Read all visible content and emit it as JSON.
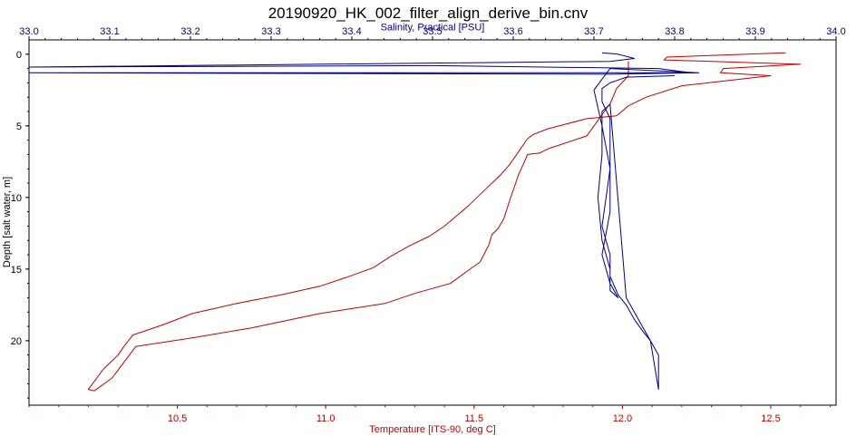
{
  "chart_data": {
    "type": "line",
    "title": "20190920_HK_002_filter_align_derive_bin.cnv",
    "plot_background": "#ffffff",
    "frame_color": "#000000",
    "grid": false,
    "legend": "none",
    "y_axis": {
      "label": "Depth [salt water, m]",
      "range": [
        -1,
        24.5
      ],
      "inverted": true,
      "ticks": [
        0,
        5,
        10,
        15,
        20
      ],
      "tick_labels": [
        "0",
        "5",
        "10",
        "15",
        "20"
      ],
      "color": "#000000"
    },
    "x_axis_top": {
      "label": "Salinity, Practical [PSU]",
      "range": [
        33.0,
        34.0
      ],
      "ticks": [
        33.0,
        33.1,
        33.2,
        33.3,
        33.4,
        33.5,
        33.6,
        33.7,
        33.8,
        33.9,
        34.0
      ],
      "tick_labels": [
        "33.0",
        "33.1",
        "33.2",
        "33.3",
        "33.4",
        "33.5",
        "33.6",
        "33.7",
        "33.8",
        "33.9",
        "34.0"
      ],
      "color": "#000080"
    },
    "x_axis_bottom": {
      "label": "Temperature [ITS-90, deg C]",
      "range": [
        10.0,
        12.72
      ],
      "ticks": [
        10.5,
        11.0,
        11.5,
        12.0,
        12.5
      ],
      "tick_labels": [
        "10.5",
        "11.0",
        "11.5",
        "12.0",
        "12.5"
      ],
      "color": "#c00000"
    },
    "series": [
      {
        "axis": "bottom",
        "color": "#c00000",
        "x": [
          12.55,
          12.15,
          12.14,
          12.6,
          12.34,
          12.33,
          12.5,
          12.2,
          12.08,
          12.02,
          11.98,
          11.88,
          11.75,
          11.7,
          11.68,
          11.65,
          11.62,
          11.59,
          11.55,
          11.51,
          11.48,
          11.44,
          11.4,
          11.35,
          11.28,
          11.22,
          11.16,
          11.08,
          10.98,
          10.85,
          10.7,
          10.55,
          10.45,
          10.35,
          10.32,
          10.3,
          10.25,
          10.2,
          10.22,
          10.28,
          10.36,
          10.55,
          10.75,
          10.98,
          11.2,
          11.3,
          11.42,
          11.48,
          11.52,
          11.55,
          11.56,
          11.58,
          11.6,
          11.62,
          11.65,
          11.67,
          11.68,
          11.72,
          11.75,
          11.88,
          11.96,
          11.98,
          12.02,
          12.02
        ],
        "y": [
          -0.1,
          0.2,
          0.4,
          0.7,
          1.0,
          1.3,
          1.5,
          2.2,
          3.0,
          3.6,
          4.3,
          4.5,
          5.2,
          5.6,
          5.9,
          6.8,
          7.7,
          8.4,
          9.2,
          10.0,
          10.6,
          11.3,
          12.0,
          12.7,
          13.4,
          14.1,
          14.9,
          15.5,
          16.2,
          16.8,
          17.4,
          18.1,
          18.9,
          19.6,
          20.4,
          21.0,
          22.0,
          23.4,
          23.5,
          22.6,
          20.4,
          19.8,
          19.1,
          18.1,
          17.4,
          16.7,
          16.0,
          15.1,
          14.5,
          13.3,
          12.6,
          12.2,
          11.5,
          10.2,
          8.4,
          7.5,
          7.0,
          6.9,
          6.6,
          5.7,
          3.4,
          2.4,
          1.5,
          0.5
        ]
      },
      {
        "axis": "top",
        "color": "#000080",
        "x": [
          33.71,
          33.73,
          33.75,
          33.72,
          33.0,
          33.5,
          33.78,
          33.82,
          33.55,
          33.0,
          33.72,
          33.83,
          33.72,
          33.7,
          33.71,
          33.72,
          33.72,
          33.71,
          33.72,
          33.73,
          33.72,
          33.72,
          33.71,
          33.705,
          33.71,
          33.71,
          33.72,
          33.74,
          33.75,
          33.76,
          33.77,
          33.78,
          33.78,
          33.77,
          33.76,
          33.75,
          33.74,
          33.73,
          33.72,
          33.72,
          33.71,
          33.715,
          33.72,
          33.72,
          33.72,
          33.71,
          33.71,
          33.72,
          33.73,
          33.74,
          33.8
        ],
        "y": [
          -0.1,
          0.0,
          0.3,
          0.5,
          0.9,
          0.8,
          1.0,
          1.3,
          1.3,
          1.3,
          1.4,
          1.3,
          1.0,
          2.5,
          5.0,
          8.0,
          11.0,
          14.0,
          16.0,
          17.0,
          16.5,
          15.0,
          13.0,
          10.0,
          7.0,
          4.0,
          3.5,
          17.0,
          18.0,
          19.0,
          20.0,
          21.0,
          23.4,
          20.0,
          19.3,
          18.5,
          17.5,
          16.8,
          15.5,
          14.0,
          12.0,
          10.0,
          8.0,
          6.0,
          4.5,
          3.3,
          2.4,
          2.0,
          1.8,
          1.6,
          1.5
        ]
      }
    ]
  }
}
